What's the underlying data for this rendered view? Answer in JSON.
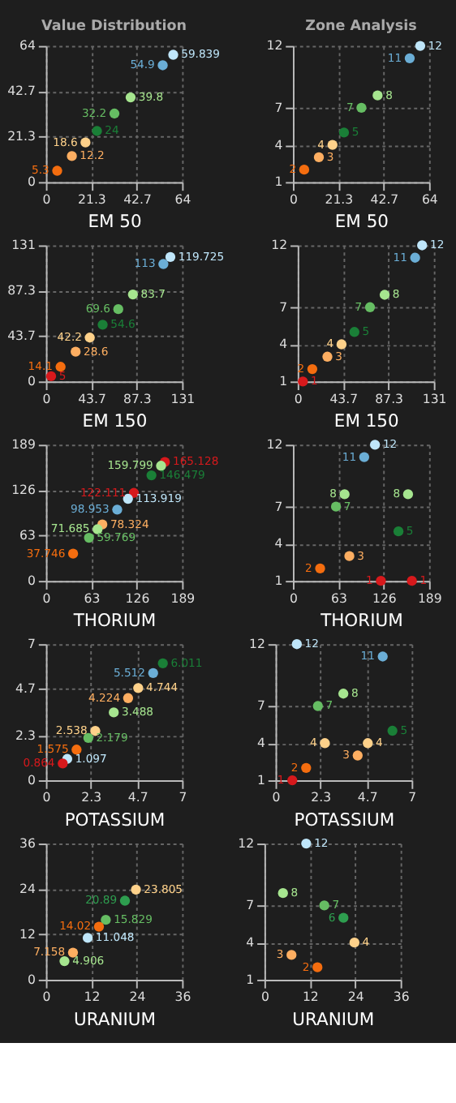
{
  "chart_data": [
    {
      "type": "scatter",
      "title": "Value Distribution",
      "xlabel": "EM 50",
      "marker": "circle",
      "grid": true,
      "data_labels": true,
      "xlim": [
        0,
        64
      ],
      "xticks": [
        0,
        21.3,
        42.7,
        64
      ],
      "ylim": [
        0,
        64
      ],
      "yticks": [
        0,
        21.3,
        42.7,
        64
      ],
      "x": [
        59.839,
        54.9,
        39.8,
        32.2,
        24.0,
        18.6,
        12.2,
        5.3
      ],
      "values": [
        59.839,
        54.9,
        39.8,
        32.2,
        24.0,
        18.6,
        12.2,
        5.3
      ],
      "colors": [
        "#bfe6fa",
        "#6baed6",
        "#a6e58f",
        "#66bd63",
        "#1a7f37",
        "#fed18a",
        "#fdae61",
        "#f46d0f"
      ]
    },
    {
      "type": "scatter",
      "title": "Zone Analysis",
      "xlabel": "EM 50",
      "marker": "circle",
      "grid": true,
      "data_labels": true,
      "xlim": [
        0,
        64
      ],
      "xticks": [
        0,
        21.3,
        42.7,
        64
      ],
      "ylim": [
        1,
        12
      ],
      "yticks": [
        1,
        4,
        7,
        12
      ],
      "x": [
        59.839,
        54.9,
        39.8,
        32.2,
        24.0,
        18.6,
        12.2,
        5.3
      ],
      "values": [
        12,
        11,
        8,
        7,
        5,
        4,
        3,
        2
      ],
      "colors": [
        "#bfe6fa",
        "#6baed6",
        "#a6e58f",
        "#66bd63",
        "#1a7f37",
        "#fed18a",
        "#fdae61",
        "#f46d0f"
      ]
    },
    {
      "type": "scatter",
      "xlabel": "EM 150",
      "marker": "circle",
      "grid": true,
      "data_labels": true,
      "xlim": [
        0,
        131
      ],
      "xticks": [
        0,
        43.7,
        87.3,
        131
      ],
      "ylim": [
        0,
        131
      ],
      "yticks": [
        0,
        43.7,
        87.3,
        131
      ],
      "x": [
        119.725,
        113,
        83.7,
        69.6,
        54.6,
        42.2,
        28.6,
        14.1,
        5.0
      ],
      "values": [
        119.725,
        113,
        83.7,
        69.6,
        54.6,
        42.2,
        28.6,
        14.1,
        5.0
      ],
      "colors": [
        "#bfe6fa",
        "#6baed6",
        "#a6e58f",
        "#66bd63",
        "#1a7f37",
        "#fed18a",
        "#fdae61",
        "#f46d0f",
        "#d7191c"
      ]
    },
    {
      "type": "scatter",
      "xlabel": "EM 150",
      "marker": "circle",
      "grid": true,
      "data_labels": true,
      "xlim": [
        0,
        131
      ],
      "xticks": [
        0,
        43.7,
        87.3,
        131
      ],
      "ylim": [
        1,
        12
      ],
      "yticks": [
        1,
        4,
        7,
        12
      ],
      "x": [
        119.725,
        113,
        83.7,
        69.6,
        54.6,
        42.2,
        28.6,
        14.1,
        5.0
      ],
      "values": [
        12,
        11,
        8,
        7,
        5,
        4,
        3,
        2,
        1
      ],
      "colors": [
        "#bfe6fa",
        "#6baed6",
        "#a6e58f",
        "#66bd63",
        "#1a7f37",
        "#fed18a",
        "#fdae61",
        "#f46d0f",
        "#d7191c"
      ]
    },
    {
      "type": "scatter",
      "xlabel": "THORIUM",
      "marker": "circle",
      "grid": true,
      "data_labels": true,
      "xlim": [
        0,
        189
      ],
      "xticks": [
        0,
        63,
        126,
        189
      ],
      "ylim": [
        0,
        189
      ],
      "yticks": [
        0,
        63,
        126,
        189
      ],
      "x": [
        165.128,
        159.799,
        146.479,
        122.111,
        113.919,
        98.953,
        78.324,
        71.685,
        59.769,
        37.746
      ],
      "values": [
        165.128,
        159.799,
        146.479,
        122.111,
        113.919,
        98.953,
        78.324,
        71.685,
        59.769,
        37.746
      ],
      "colors": [
        "#d7191c",
        "#a6e58f",
        "#1a7f37",
        "#d7191c",
        "#bfe6fa",
        "#6baed6",
        "#fdae61",
        "#a6e58f",
        "#66bd63",
        "#f46d0f"
      ]
    },
    {
      "type": "scatter",
      "xlabel": "THORIUM",
      "marker": "circle",
      "grid": true,
      "data_labels": true,
      "xlim": [
        0,
        189
      ],
      "xticks": [
        0,
        63,
        126,
        189
      ],
      "ylim": [
        1,
        12
      ],
      "yticks": [
        1,
        4,
        7,
        12
      ],
      "x": [
        165.128,
        159.799,
        146.479,
        122.111,
        113.919,
        98.953,
        78.324,
        71.685,
        59.769,
        37.746
      ],
      "values": [
        1,
        8,
        5,
        1,
        12,
        11,
        3,
        8,
        7,
        2
      ],
      "colors": [
        "#d7191c",
        "#a6e58f",
        "#1a7f37",
        "#d7191c",
        "#bfe6fa",
        "#6baed6",
        "#fdae61",
        "#a6e58f",
        "#66bd63",
        "#f46d0f"
      ]
    },
    {
      "type": "scatter",
      "xlabel": "POTASSIUM",
      "marker": "circle",
      "grid": true,
      "data_labels": true,
      "xlim": [
        0,
        7
      ],
      "xticks": [
        0,
        2.3,
        4.7,
        7
      ],
      "ylim": [
        0,
        7
      ],
      "yticks": [
        0,
        2.3,
        4.7,
        7
      ],
      "x": [
        6.011,
        5.512,
        4.744,
        4.224,
        3.488,
        2.538,
        2.179,
        1.575,
        1.097,
        0.864
      ],
      "values": [
        6.011,
        5.512,
        4.744,
        4.224,
        3.488,
        2.538,
        2.179,
        1.575,
        1.097,
        0.864
      ],
      "colors": [
        "#1a7f37",
        "#6baed6",
        "#fed18a",
        "#fdae61",
        "#a6e58f",
        "#fed18a",
        "#66bd63",
        "#f46d0f",
        "#bfe6fa",
        "#d7191c"
      ]
    },
    {
      "type": "scatter",
      "xlabel": "POTASSIUM",
      "marker": "circle",
      "grid": true,
      "data_labels": true,
      "xlim": [
        0,
        7
      ],
      "xticks": [
        0,
        2.3,
        4.7,
        7
      ],
      "ylim": [
        1,
        12
      ],
      "yticks": [
        1,
        4,
        7,
        12
      ],
      "x": [
        6.011,
        5.512,
        4.744,
        4.224,
        3.488,
        2.538,
        2.179,
        1.575,
        1.097,
        0.864
      ],
      "values": [
        5,
        11,
        4,
        3,
        8,
        4,
        7,
        2,
        12,
        1
      ],
      "colors": [
        "#1a7f37",
        "#6baed6",
        "#fed18a",
        "#fdae61",
        "#a6e58f",
        "#fed18a",
        "#66bd63",
        "#f46d0f",
        "#bfe6fa",
        "#d7191c"
      ]
    },
    {
      "type": "scatter",
      "xlabel": "URANIUM",
      "marker": "circle",
      "grid": true,
      "data_labels": true,
      "xlim": [
        0,
        36
      ],
      "xticks": [
        0,
        12,
        24,
        36
      ],
      "ylim": [
        0,
        36
      ],
      "yticks": [
        0,
        12,
        24,
        36
      ],
      "x": [
        23.805,
        20.89,
        15.829,
        14.02,
        11.048,
        7.158,
        4.906
      ],
      "values": [
        23.805,
        20.89,
        15.829,
        14.02,
        11.048,
        7.158,
        4.906
      ],
      "colors": [
        "#fed18a",
        "#2e9e4f",
        "#66bd63",
        "#f46d0f",
        "#bfe6fa",
        "#fdae61",
        "#a6e58f"
      ]
    },
    {
      "type": "scatter",
      "xlabel": "URANIUM",
      "marker": "circle",
      "grid": true,
      "data_labels": true,
      "xlim": [
        0,
        36
      ],
      "xticks": [
        0,
        12,
        24,
        36
      ],
      "ylim": [
        1,
        12
      ],
      "yticks": [
        1,
        4,
        7,
        12
      ],
      "x": [
        23.805,
        20.89,
        15.829,
        14.02,
        11.048,
        7.158,
        4.906
      ],
      "values": [
        4,
        6,
        7,
        2,
        12,
        3,
        8
      ],
      "colors": [
        "#fed18a",
        "#2e9e4f",
        "#66bd63",
        "#f46d0f",
        "#bfe6fa",
        "#fdae61",
        "#a6e58f"
      ]
    }
  ]
}
